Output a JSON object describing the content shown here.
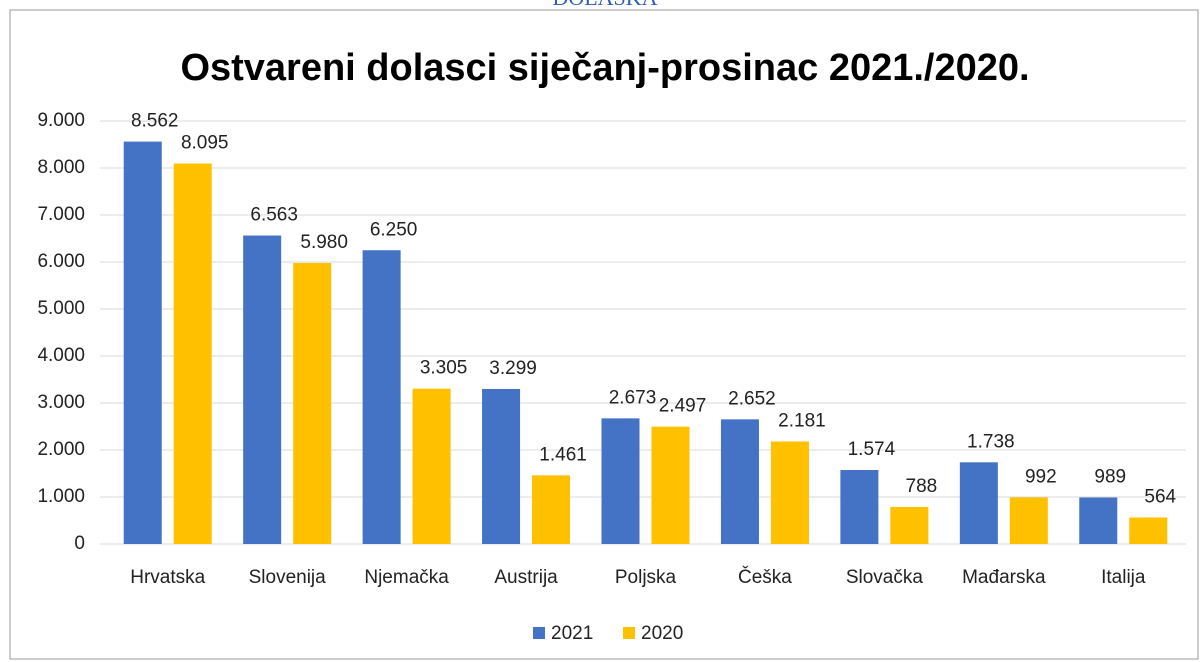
{
  "header": {
    "text": "DOLASKA"
  },
  "chart_data": {
    "type": "bar",
    "title": "Ostvareni dolasci siječanj-prosinac 2021./2020.",
    "categories": [
      "Hrvatska",
      "Slovenija",
      "Njemačka",
      "Austrija",
      "Poljska",
      "Češka",
      "Slovačka",
      "Mađarska",
      "Italija"
    ],
    "series": [
      {
        "name": "2021",
        "color": "#4472c4",
        "values": [
          8562,
          6563,
          6250,
          3299,
          2673,
          2652,
          1574,
          1738,
          989
        ],
        "value_labels": [
          "8.562",
          "6.563",
          "6.250",
          "3.299",
          "2.673",
          "2.652",
          "1.574",
          "1.738",
          "989"
        ]
      },
      {
        "name": "2020",
        "color": "#ffc000",
        "values": [
          8095,
          5980,
          3305,
          1461,
          2497,
          2181,
          788,
          992,
          564
        ],
        "value_labels": [
          "8.095",
          "5.980",
          "3.305",
          "1.461",
          "2.497",
          "2.181",
          "788",
          "992",
          "564"
        ]
      }
    ],
    "ylim": [
      0,
      9000
    ],
    "yticks": [
      0,
      {
        "value": 1000,
        "label": "1.000"
      },
      {
        "value": 2000,
        "label": "2.000"
      },
      {
        "value": 3000,
        "label": "3.000"
      },
      {
        "value": 4000,
        "label": "4.000"
      },
      {
        "value": 5000,
        "label": "5.000"
      },
      {
        "value": 6000,
        "label": "6.000"
      },
      {
        "value": 7000,
        "label": "7.000"
      },
      {
        "value": 8000,
        "label": "8.000"
      },
      {
        "value": 9000,
        "label": "9.000"
      }
    ],
    "grid": true,
    "legend": "bottom"
  }
}
